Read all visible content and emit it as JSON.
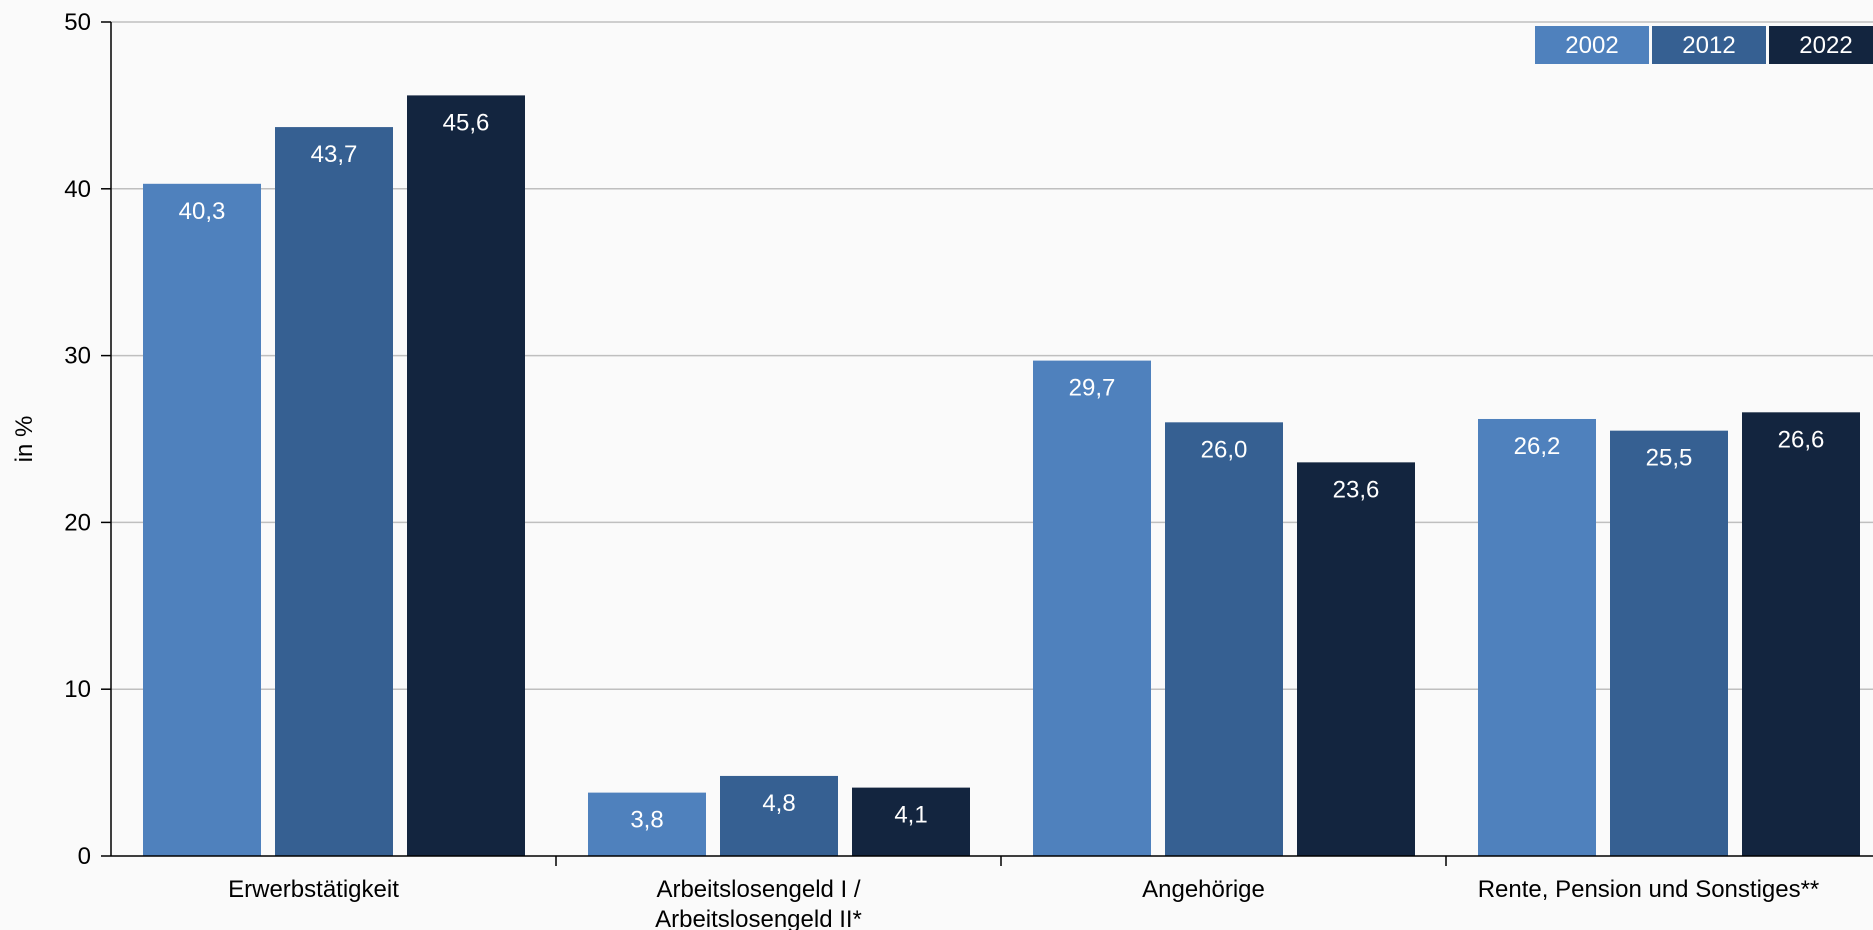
{
  "chart_data": {
    "type": "bar",
    "ylabel": "in %",
    "ylim": [
      0,
      50
    ],
    "yticks": [
      "0",
      "10",
      "20",
      "30",
      "40",
      "50"
    ],
    "grid": true,
    "legend_position": "top-right",
    "categories": [
      [
        "Erwerbstätigkeit"
      ],
      [
        "Arbeitslosengeld I /",
        "Arbeitslosengeld II*"
      ],
      [
        "Angehörige"
      ],
      [
        "Rente, Pension und Sonstiges**"
      ]
    ],
    "series": [
      {
        "name": "2002",
        "color": "#4f81bd",
        "values": [
          40.3,
          3.8,
          29.7,
          26.2
        ],
        "labels": [
          "40,3",
          "3,8",
          "29,7",
          "26,2"
        ]
      },
      {
        "name": "2012",
        "color": "#366092",
        "values": [
          43.7,
          4.8,
          26.0,
          25.5
        ],
        "labels": [
          "43,7",
          "4,8",
          "26,0",
          "25,5"
        ]
      },
      {
        "name": "2022",
        "color": "#13253f",
        "values": [
          45.6,
          4.1,
          23.6,
          26.6
        ],
        "labels": [
          "45,6",
          "4,1",
          "23,6",
          "26,6"
        ]
      }
    ]
  }
}
